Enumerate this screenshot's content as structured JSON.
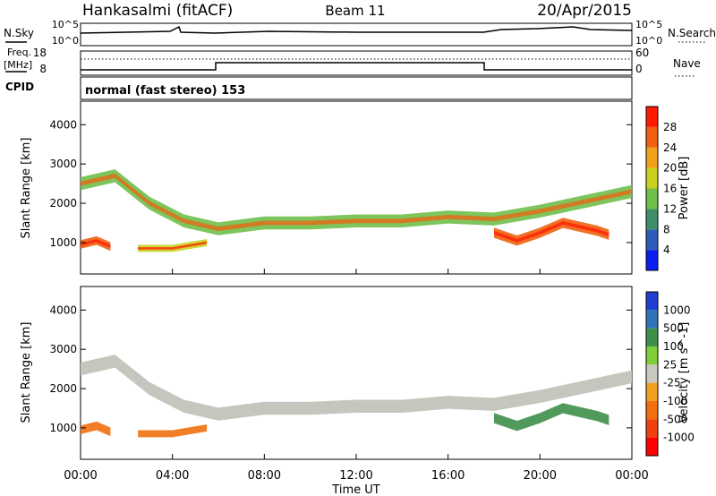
{
  "header": {
    "station": "Hankasalmi (fitACF)",
    "beam": "Beam 11",
    "date": "20/Apr/2015"
  },
  "strip_labels": {
    "nsky": "N.Sky",
    "nsearch": "N.Search",
    "nsky_top": "10^5",
    "nsky_bottom": "10^0",
    "nsearch_top": "10^5",
    "nsearch_bottom": "10^0",
    "freq": "Freq.",
    "freq_unit": "[MHz]",
    "freq_top": "18",
    "freq_bottom": "8",
    "nave": "Nave",
    "nave_top": "60",
    "nave_bottom": "0",
    "cpid": "CPID",
    "cpid_value": "normal (fast stereo) 153"
  },
  "colors": {
    "power_scale": [
      "#0a1ef0",
      "#2f5cb8",
      "#3f8f6a",
      "#6fbf4a",
      "#c8d21e",
      "#f0a01a",
      "#f06010",
      "#ff1a00"
    ],
    "velocity_scale": [
      "#1f3fd0",
      "#2f74b8",
      "#3f8f4a",
      "#7fcf3a",
      "#c8c8c0",
      "#f0a020",
      "#f07010",
      "#f04010",
      "#ff0000"
    ],
    "ground_scatter": "#c0c0b8"
  },
  "chart_data": [
    {
      "type": "heatmap",
      "panel": "power",
      "ylabel": "Slant Range [km]",
      "colorbar_label": "Power [dB]",
      "ylim": [
        200,
        4600
      ],
      "yticks": [
        "1000",
        "2000",
        "3000",
        "4000"
      ],
      "colorbar_ticks": [
        "4",
        "8",
        "12",
        "16",
        "20",
        "24",
        "28"
      ],
      "bands": [
        {
          "x": [
            0.0,
            1.5,
            3.0,
            4.5,
            6.0,
            8.0,
            10.0,
            12.0,
            14.0,
            16.0,
            18.0,
            20.0,
            22.0,
            24.0
          ],
          "y": [
            2500,
            2700,
            2000,
            1550,
            1350,
            1500,
            1500,
            1550,
            1550,
            1650,
            1600,
            1800,
            2050,
            2300
          ],
          "width": 330,
          "level": 14
        },
        {
          "x": [
            0.0,
            0.7,
            1.3
          ],
          "y": [
            950,
            1050,
            900
          ],
          "width": 220,
          "level": 26
        },
        {
          "x": [
            2.5,
            4.0,
            5.5
          ],
          "y": [
            850,
            850,
            1000
          ],
          "width": 180,
          "level": 18
        },
        {
          "x": [
            18.0,
            19.0,
            20.0,
            21.0,
            22.5,
            23.0
          ],
          "y": [
            1250,
            1050,
            1250,
            1500,
            1300,
            1200
          ],
          "width": 260,
          "level": 27
        }
      ]
    },
    {
      "type": "heatmap",
      "panel": "velocity",
      "xlabel": "Time UT",
      "ylabel": "Slant Range [km]",
      "colorbar_label": "Velocity [m s^-1]",
      "ylim": [
        200,
        4600
      ],
      "yticks": [
        "1000",
        "2000",
        "3000",
        "4000"
      ],
      "xticks": [
        "00:00",
        "04:00",
        "08:00",
        "12:00",
        "16:00",
        "20:00",
        "00:00"
      ],
      "colorbar_ticks": [
        "1000",
        "500",
        "100",
        "25",
        "-25",
        "-100",
        "-500",
        "-1000"
      ],
      "bands": [
        {
          "x": [
            0.0,
            1.5,
            3.0,
            4.5,
            6.0,
            8.0,
            10.0,
            12.0,
            14.0,
            16.0,
            18.0,
            20.0,
            22.0,
            24.0
          ],
          "y": [
            2500,
            2700,
            2000,
            1550,
            1350,
            1500,
            1500,
            1550,
            1550,
            1650,
            1600,
            1800,
            2050,
            2300
          ],
          "width": 330,
          "level": 0
        },
        {
          "x": [
            0.0,
            0.7,
            1.3
          ],
          "y": [
            950,
            1050,
            900
          ],
          "width": 220,
          "level": -300
        },
        {
          "x": [
            2.5,
            4.0,
            5.5
          ],
          "y": [
            850,
            850,
            1000
          ],
          "width": 180,
          "level": -100
        },
        {
          "x": [
            18.0,
            19.0,
            20.0,
            21.0,
            22.5,
            23.0
          ],
          "y": [
            1250,
            1050,
            1250,
            1500,
            1300,
            1200
          ],
          "width": 260,
          "level": 200
        }
      ]
    }
  ]
}
